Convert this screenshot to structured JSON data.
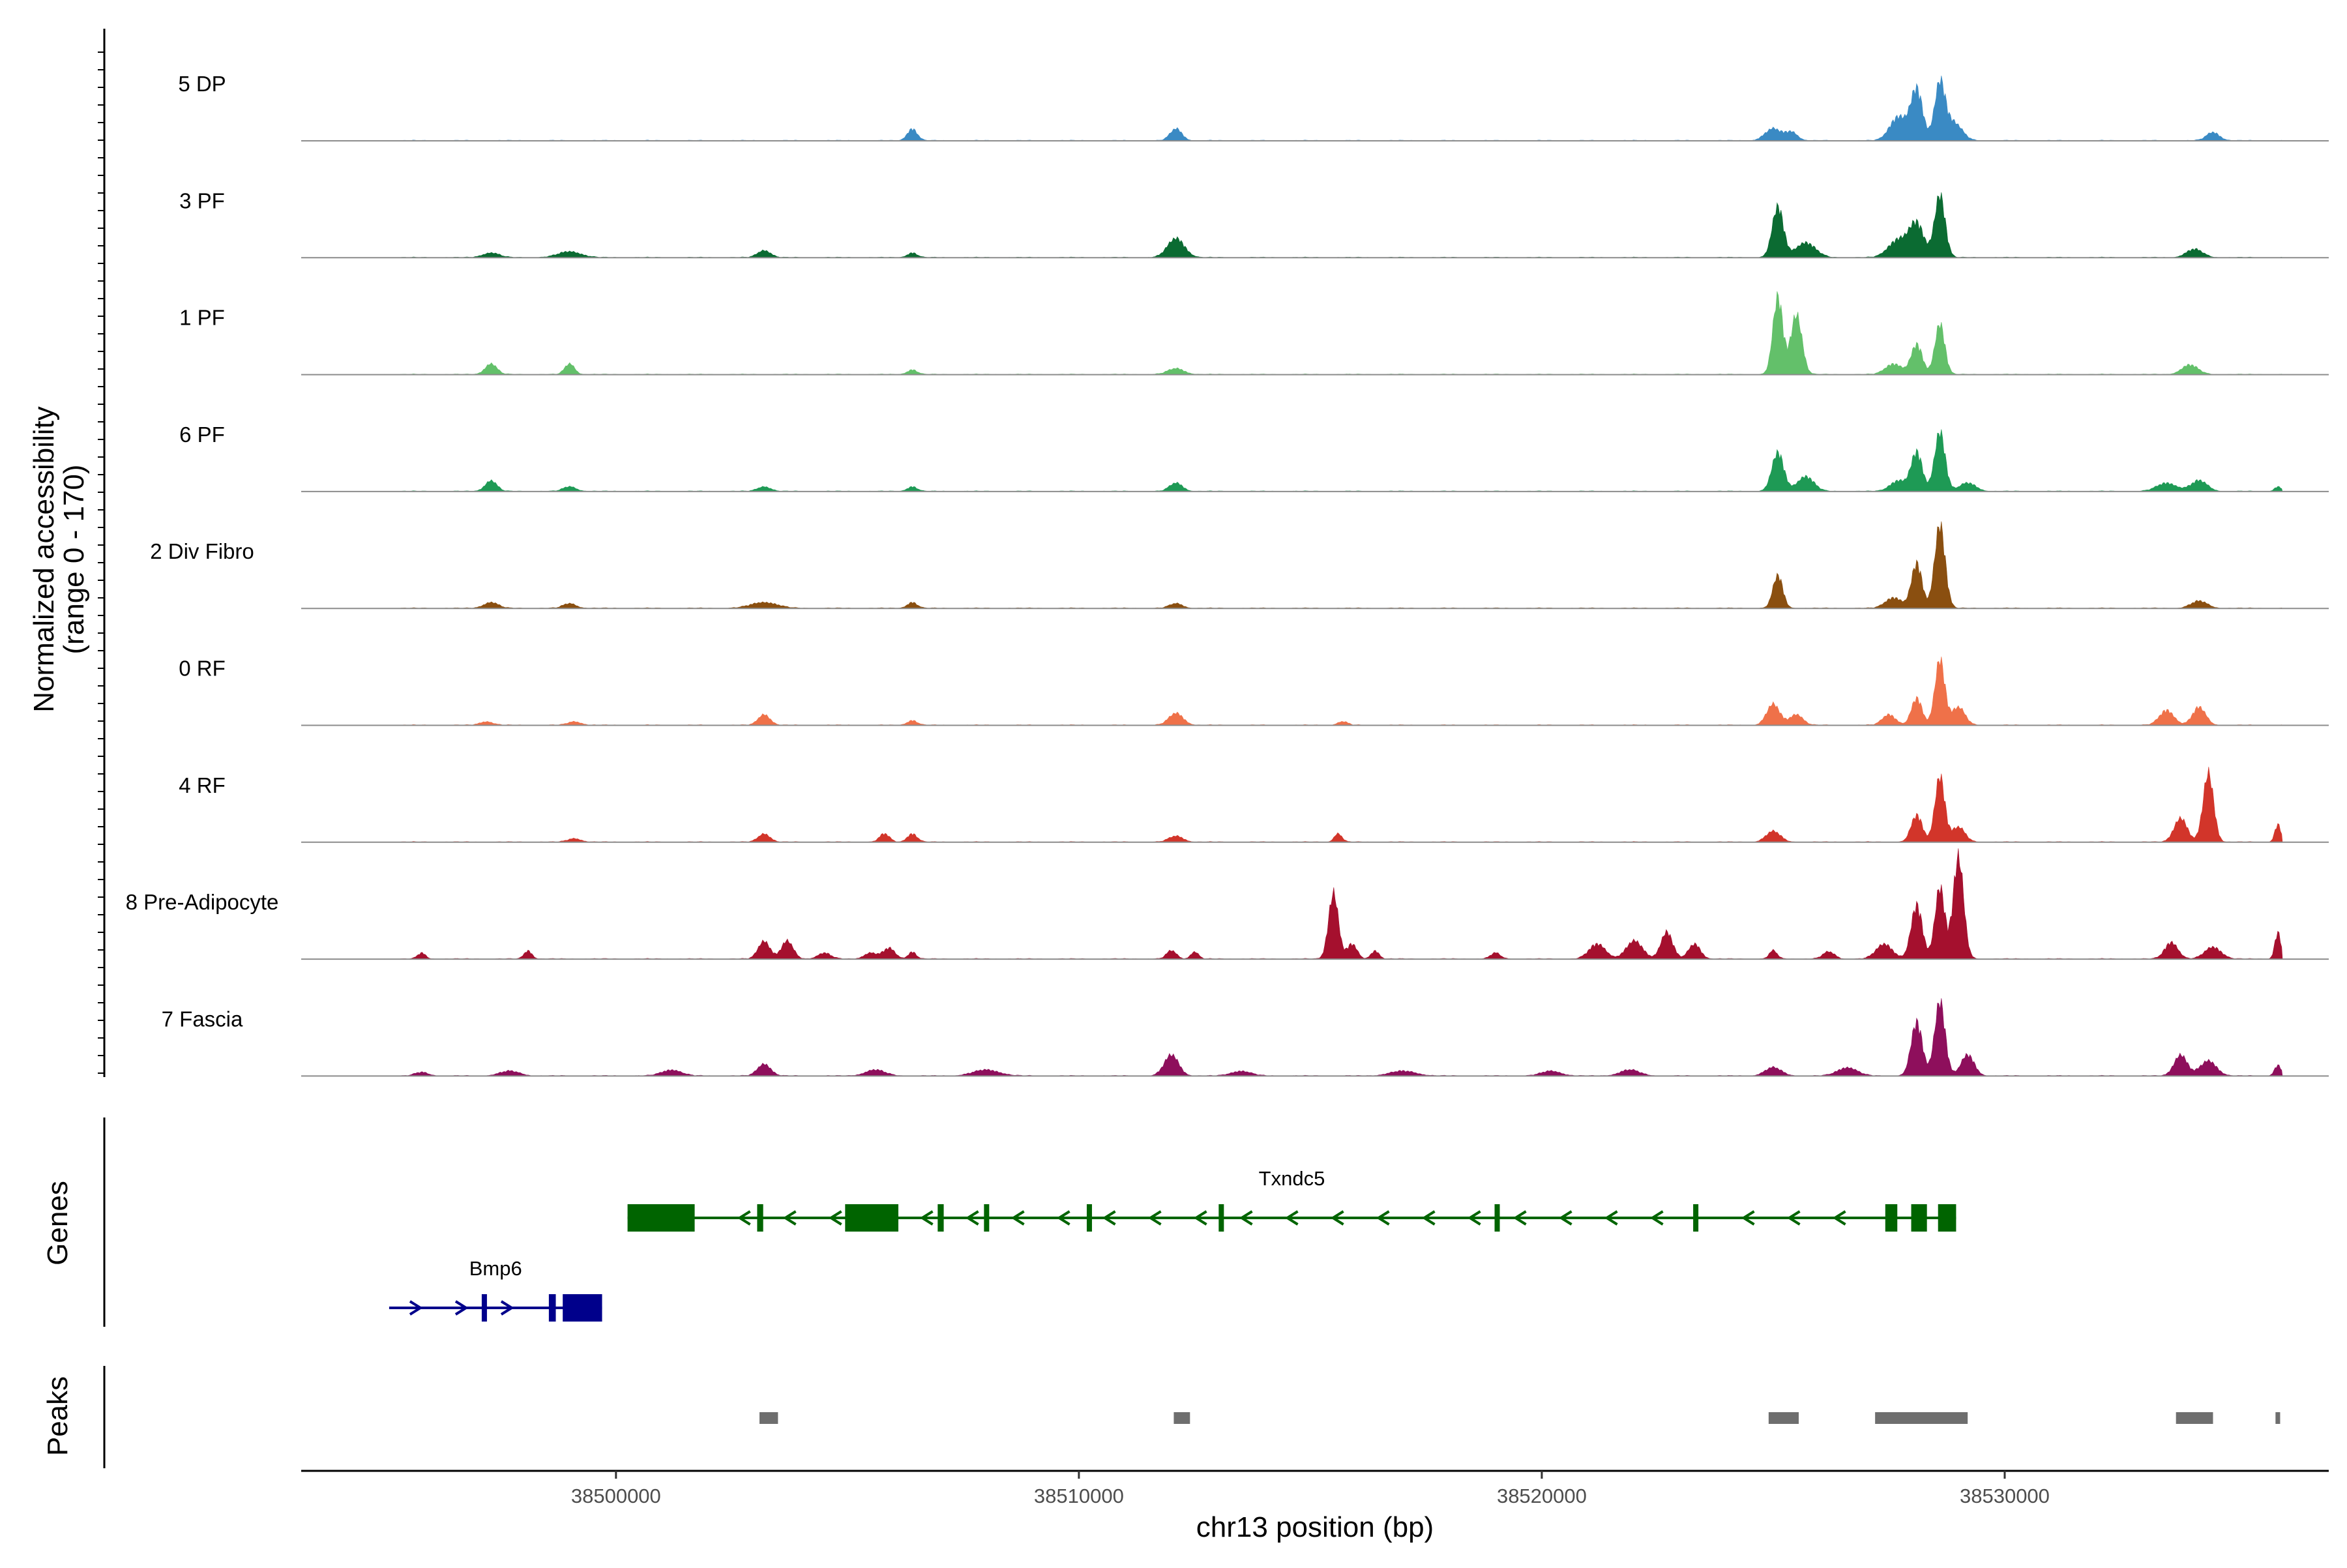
{
  "chart_data": {
    "type": "area",
    "title": "",
    "chromosome": "chr13",
    "xlabel": "chr13 position (bp)",
    "ylabel_line1": "Normalized accessibility",
    "ylabel_line2": "(range 0 - 170)",
    "y_range": [
      0,
      170
    ],
    "x_range": [
      38493200,
      38537000
    ],
    "x_ticks": [
      38500000,
      38510000,
      38520000,
      38530000
    ],
    "x_tick_labels": [
      "38500000",
      "38510000",
      "38520000",
      "38530000"
    ],
    "tracks": [
      {
        "name": "5 DP",
        "color": "#3a8ac4",
        "peaks": [
          [
            38506400,
            20,
            150
          ],
          [
            38512100,
            20,
            180
          ],
          [
            38525000,
            20,
            250
          ],
          [
            38525400,
            14,
            180
          ],
          [
            38527700,
            40,
            260
          ],
          [
            38528100,
            85,
            180
          ],
          [
            38528600,
            95,
            160
          ],
          [
            38528900,
            30,
            250
          ],
          [
            38534500,
            14,
            200
          ]
        ]
      },
      {
        "name": "3 PF",
        "color": "#0b6b32",
        "peaks": [
          [
            38497300,
            8,
            250
          ],
          [
            38499000,
            10,
            350
          ],
          [
            38503200,
            12,
            200
          ],
          [
            38506400,
            8,
            150
          ],
          [
            38512100,
            32,
            260
          ],
          [
            38525100,
            85,
            170
          ],
          [
            38525700,
            25,
            300
          ],
          [
            38527700,
            30,
            300
          ],
          [
            38528100,
            55,
            220
          ],
          [
            38528600,
            105,
            160
          ],
          [
            38534100,
            14,
            250
          ]
        ]
      },
      {
        "name": "1 PF",
        "color": "#63c06a",
        "peaks": [
          [
            38497300,
            18,
            180
          ],
          [
            38499000,
            18,
            150
          ],
          [
            38506400,
            8,
            150
          ],
          [
            38512100,
            10,
            250
          ],
          [
            38525100,
            130,
            150
          ],
          [
            38525500,
            100,
            170
          ],
          [
            38527600,
            18,
            250
          ],
          [
            38528100,
            50,
            170
          ],
          [
            38528600,
            85,
            150
          ],
          [
            38534000,
            16,
            250
          ]
        ]
      },
      {
        "name": "6 PF",
        "color": "#1e9a55",
        "peaks": [
          [
            38497300,
            18,
            180
          ],
          [
            38499000,
            8,
            200
          ],
          [
            38503200,
            8,
            200
          ],
          [
            38506400,
            8,
            150
          ],
          [
            38512100,
            14,
            200
          ],
          [
            38525100,
            65,
            180
          ],
          [
            38525700,
            25,
            250
          ],
          [
            38527700,
            18,
            250
          ],
          [
            38528100,
            65,
            170
          ],
          [
            38528600,
            100,
            160
          ],
          [
            38529200,
            14,
            250
          ],
          [
            38533500,
            14,
            300
          ],
          [
            38534200,
            18,
            250
          ],
          [
            38535900,
            8,
            100
          ]
        ]
      },
      {
        "name": "2 Div Fibro",
        "color": "#8a4f10",
        "peaks": [
          [
            38497300,
            10,
            220
          ],
          [
            38499000,
            8,
            200
          ],
          [
            38503200,
            10,
            400
          ],
          [
            38506400,
            10,
            150
          ],
          [
            38512100,
            8,
            200
          ],
          [
            38525100,
            55,
            150
          ],
          [
            38527600,
            18,
            250
          ],
          [
            38528100,
            75,
            160
          ],
          [
            38528600,
            140,
            160
          ],
          [
            38534200,
            12,
            250
          ]
        ]
      },
      {
        "name": "0 RF",
        "color": "#ef7149",
        "peaks": [
          [
            38497200,
            6,
            200
          ],
          [
            38499100,
            6,
            200
          ],
          [
            38503200,
            18,
            180
          ],
          [
            38506400,
            8,
            150
          ],
          [
            38512100,
            20,
            220
          ],
          [
            38515700,
            6,
            150
          ],
          [
            38525000,
            35,
            200
          ],
          [
            38525500,
            18,
            200
          ],
          [
            38527500,
            18,
            200
          ],
          [
            38528100,
            45,
            160
          ],
          [
            38528600,
            110,
            150
          ],
          [
            38529000,
            30,
            200
          ],
          [
            38533500,
            25,
            220
          ],
          [
            38534200,
            30,
            200
          ]
        ]
      },
      {
        "name": "4 RF",
        "color": "#d2352a",
        "peaks": [
          [
            38499100,
            6,
            200
          ],
          [
            38503200,
            14,
            180
          ],
          [
            38505800,
            14,
            150
          ],
          [
            38506400,
            14,
            150
          ],
          [
            38512100,
            10,
            220
          ],
          [
            38515600,
            14,
            120
          ],
          [
            38525000,
            18,
            220
          ],
          [
            38528100,
            45,
            170
          ],
          [
            38528600,
            110,
            150
          ],
          [
            38529000,
            25,
            200
          ],
          [
            38533800,
            40,
            200
          ],
          [
            38534400,
            115,
            160
          ],
          [
            38535900,
            30,
            90
          ]
        ]
      },
      {
        "name": "8 Pre-Adipocyte",
        "color": "#a5102e",
        "peaks": [
          [
            38495800,
            10,
            120
          ],
          [
            38498100,
            14,
            120
          ],
          [
            38503200,
            30,
            180
          ],
          [
            38503700,
            30,
            180
          ],
          [
            38504500,
            10,
            200
          ],
          [
            38505500,
            10,
            200
          ],
          [
            38505900,
            18,
            180
          ],
          [
            38506400,
            12,
            120
          ],
          [
            38512000,
            14,
            150
          ],
          [
            38512500,
            12,
            120
          ],
          [
            38515500,
            110,
            150
          ],
          [
            38515900,
            25,
            150
          ],
          [
            38516400,
            14,
            120
          ],
          [
            38519000,
            10,
            150
          ],
          [
            38521200,
            25,
            250
          ],
          [
            38522000,
            30,
            250
          ],
          [
            38522700,
            45,
            180
          ],
          [
            38523300,
            25,
            180
          ],
          [
            38525000,
            14,
            120
          ],
          [
            38526200,
            12,
            180
          ],
          [
            38527400,
            25,
            250
          ],
          [
            38528100,
            90,
            170
          ],
          [
            38528600,
            120,
            150
          ],
          [
            38529000,
            170,
            160
          ],
          [
            38533600,
            28,
            200
          ],
          [
            38534500,
            20,
            250
          ],
          [
            38535900,
            45,
            90
          ]
        ]
      },
      {
        "name": "7 Fascia",
        "color": "#8e0f5c",
        "peaks": [
          [
            38495800,
            6,
            200
          ],
          [
            38497700,
            8,
            300
          ],
          [
            38501200,
            10,
            300
          ],
          [
            38503200,
            20,
            200
          ],
          [
            38505600,
            10,
            300
          ],
          [
            38508000,
            10,
            400
          ],
          [
            38512000,
            35,
            220
          ],
          [
            38513500,
            8,
            300
          ],
          [
            38517000,
            8,
            400
          ],
          [
            38520200,
            8,
            300
          ],
          [
            38521900,
            10,
            300
          ],
          [
            38525000,
            14,
            250
          ],
          [
            38526600,
            14,
            300
          ],
          [
            38528100,
            90,
            170
          ],
          [
            38528600,
            125,
            160
          ],
          [
            38529200,
            35,
            200
          ],
          [
            38533800,
            35,
            200
          ],
          [
            38534400,
            25,
            250
          ],
          [
            38535900,
            18,
            100
          ]
        ]
      }
    ],
    "genes": [
      {
        "name": "Txndc5",
        "strand": "-",
        "color": "#006400",
        "start": 38500250,
        "end": 38528950,
        "row": 1,
        "exons": [
          [
            38500250,
            38501700
          ],
          [
            38503050,
            38503180
          ],
          [
            38504950,
            38506100
          ],
          [
            38506950,
            38507080
          ],
          [
            38507950,
            38508040
          ],
          [
            38510170,
            38510260
          ],
          [
            38513020,
            38513120
          ],
          [
            38518980,
            38519070
          ],
          [
            38523270,
            38523370
          ],
          [
            38527420,
            38527680
          ],
          [
            38527980,
            38528320
          ],
          [
            38528560,
            38528950
          ]
        ]
      },
      {
        "name": "Bmp6",
        "strand": "+",
        "color": "#00008b",
        "start": 38495100,
        "end": 38499700,
        "row": 2,
        "exons": [
          [
            38497100,
            38497170
          ],
          [
            38498550,
            38498700
          ],
          [
            38498850,
            38499700
          ]
        ]
      }
    ],
    "peak_regions": [
      [
        38503100,
        38503500
      ],
      [
        38512050,
        38512400
      ],
      [
        38524900,
        38525550
      ],
      [
        38527200,
        38529200
      ],
      [
        38533700,
        38534500
      ],
      [
        38535850,
        38535950
      ]
    ],
    "y_label_genes": "Genes",
    "y_label_peaks": "Peaks"
  }
}
